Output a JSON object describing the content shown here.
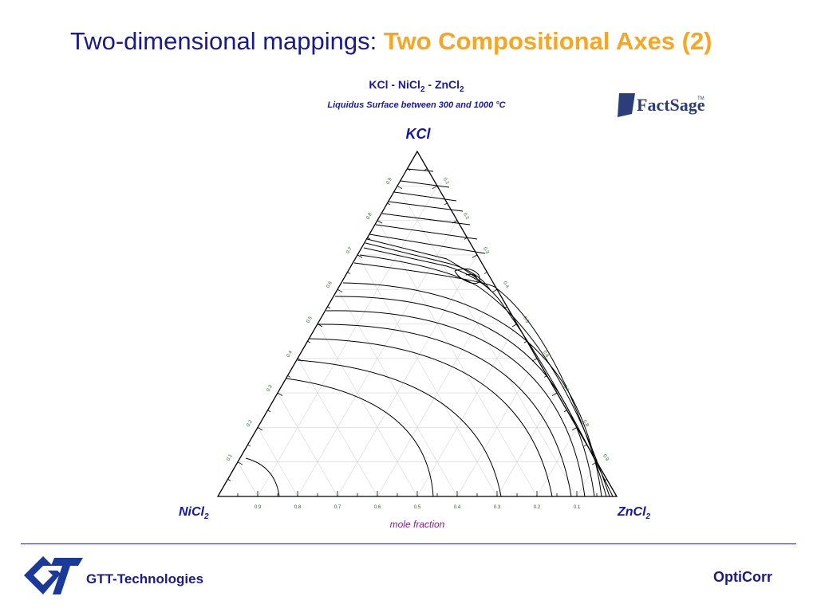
{
  "slide": {
    "title_prefix": "Two-dimensional mappings: ",
    "title_highlight": "Two Compositional Axes (2)",
    "footer_company": "GTT-Technologies",
    "footer_product": "OptiCorr"
  },
  "diagram": {
    "system_a": "KCl - NiCl",
    "sub_a": "2",
    "system_b": " - ZnCl",
    "sub_b": "2",
    "caption": "Liquidus Surface between 300 and 1000 °C",
    "vertex_top": "KCl",
    "vertex_left": "NiCl",
    "vertex_left_sub": "2",
    "vertex_right": "ZnCl",
    "vertex_right_sub": "2",
    "axis_label": "mole fraction",
    "bottom_ticks": [
      "0.9",
      "0.8",
      "0.7",
      "0.6",
      "0.5",
      "0.4",
      "0.3",
      "0.2",
      "0.1"
    ],
    "left_ticks": [
      "0.1",
      "0.2",
      "0.3",
      "0.4",
      "0.5",
      "0.6",
      "0.7",
      "0.8",
      "0.9"
    ],
    "right_ticks": [
      "0.1",
      "0.2",
      "0.3",
      "0.4",
      "0.5",
      "0.6",
      "0.7",
      "0.8",
      "0.9"
    ],
    "logo_text": "FactSage",
    "logo_tm": "TM"
  }
}
